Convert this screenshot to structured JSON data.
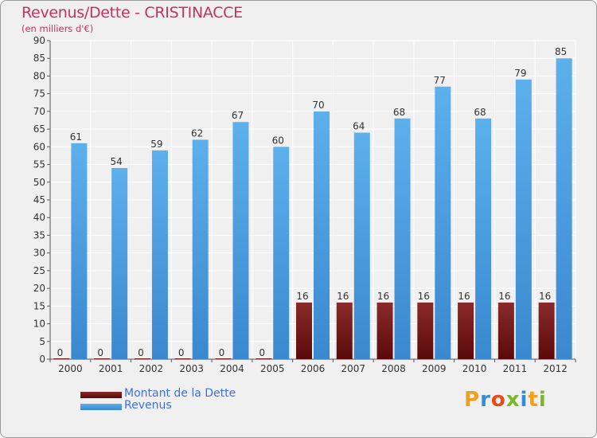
{
  "title": "Revenus/Dette - CRISTINACCE",
  "subtitle": "(en milliers d'€)",
  "chart_data": {
    "type": "bar",
    "categories": [
      "2000",
      "2001",
      "2002",
      "2003",
      "2004",
      "2005",
      "2006",
      "2007",
      "2008",
      "2009",
      "2010",
      "2011",
      "2012"
    ],
    "series": [
      {
        "name": "Montant de la Dette",
        "values": [
          0,
          0,
          0,
          0,
          0,
          0,
          16,
          16,
          16,
          16,
          16,
          16,
          16
        ],
        "color": "#7b1818"
      },
      {
        "name": "Revenus",
        "values": [
          61,
          54,
          59,
          62,
          67,
          60,
          70,
          64,
          68,
          77,
          68,
          79,
          85
        ],
        "color": "#4a9fe3"
      }
    ],
    "ylim": [
      0,
      90
    ],
    "yticks": [
      0,
      5,
      10,
      15,
      20,
      25,
      30,
      35,
      40,
      45,
      50,
      55,
      60,
      65,
      70,
      75,
      80,
      85,
      90
    ],
    "grid": true
  },
  "legend": {
    "debt_label": "Montant de la Dette",
    "revenue_label": "Revenus"
  },
  "brand": {
    "letters": [
      "P",
      "r",
      "o",
      "x",
      "i",
      "t",
      "i"
    ],
    "colors": [
      "#f0a020",
      "#2f8fd8",
      "#e84a1a",
      "#7ab82a",
      "#2f8fd8",
      "#f0a020",
      "#7ab82a"
    ]
  }
}
